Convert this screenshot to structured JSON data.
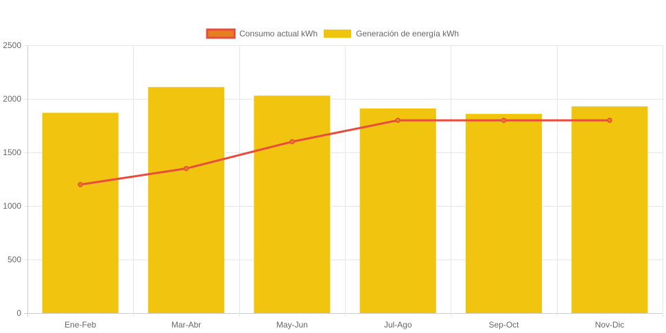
{
  "chart_data": {
    "type": "bar",
    "title": "",
    "xlabel": "",
    "ylabel": "",
    "categories": [
      "Ene-Feb",
      "Mar-Abr",
      "May-Jun",
      "Jul-Ago",
      "Sep-Oct",
      "Nov-Dic"
    ],
    "ylim": [
      0,
      2500
    ],
    "yticks": [
      0,
      500,
      1000,
      1500,
      2000,
      2500
    ],
    "grid": true,
    "legend_position": "top-center",
    "series": [
      {
        "name": "Consumo actual kWh",
        "type": "line",
        "values": [
          1200,
          1350,
          1600,
          1800,
          1800,
          1800
        ],
        "color": "#e74c3c",
        "legend_fill": "#e67e22"
      },
      {
        "name": "Generación de energía kWh",
        "type": "bar",
        "values": [
          1870,
          2110,
          2030,
          1910,
          1860,
          1930
        ],
        "color": "#f1c40f"
      }
    ]
  }
}
